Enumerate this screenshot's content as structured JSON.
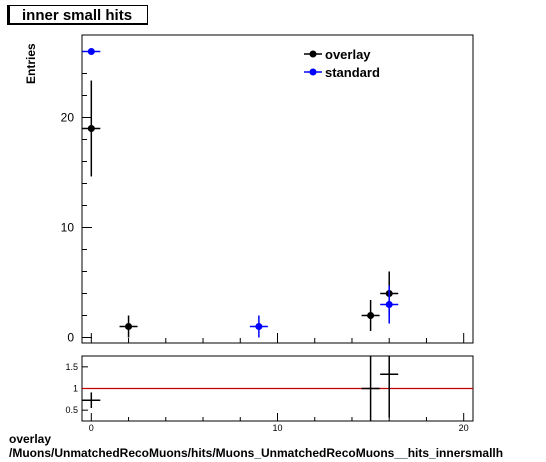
{
  "title": "inner small hits",
  "footer_line1": "overlay",
  "footer_line2": "/Muons/UnmatchedRecoMuons/hits/Muons_UnmatchedRecoMuons__hits_innersmallh",
  "chart_data": [
    {
      "type": "scatter",
      "ylabel": "Entries",
      "xlim": [
        -0.5,
        20.5
      ],
      "ylim": [
        -0.5,
        27.5
      ],
      "yticks": [
        0,
        10,
        20
      ],
      "legend_position": "top-right",
      "series": [
        {
          "name": "overlay",
          "color": "#000000",
          "points": [
            {
              "x": 0,
              "y": 19,
              "err": 4.36
            },
            {
              "x": 2,
              "y": 1,
              "err": 1.0
            },
            {
              "x": 15,
              "y": 2,
              "err": 1.41
            },
            {
              "x": 16,
              "y": 4,
              "err": 2.0
            }
          ]
        },
        {
          "name": "standard",
          "color": "#0000ff",
          "points": [
            {
              "x": 0,
              "y": 26,
              "err": 0
            },
            {
              "x": 9,
              "y": 1,
              "err": 1.0
            },
            {
              "x": 16,
              "y": 3,
              "err": 1.73
            }
          ]
        }
      ]
    },
    {
      "type": "scatter",
      "xlim": [
        -0.5,
        20.5
      ],
      "ylim": [
        0.25,
        1.75
      ],
      "xticks": [
        0,
        10,
        20
      ],
      "yticks": [
        0.5,
        1,
        1.5
      ],
      "reference_line": 1,
      "reference_color": "#c00000",
      "points": [
        {
          "x": 0,
          "y": 0.73,
          "err": 0.18
        },
        {
          "x": 15,
          "y": 1.0,
          "err": 1.2
        },
        {
          "x": 16,
          "y": 1.33,
          "err": 1.0
        }
      ]
    }
  ]
}
